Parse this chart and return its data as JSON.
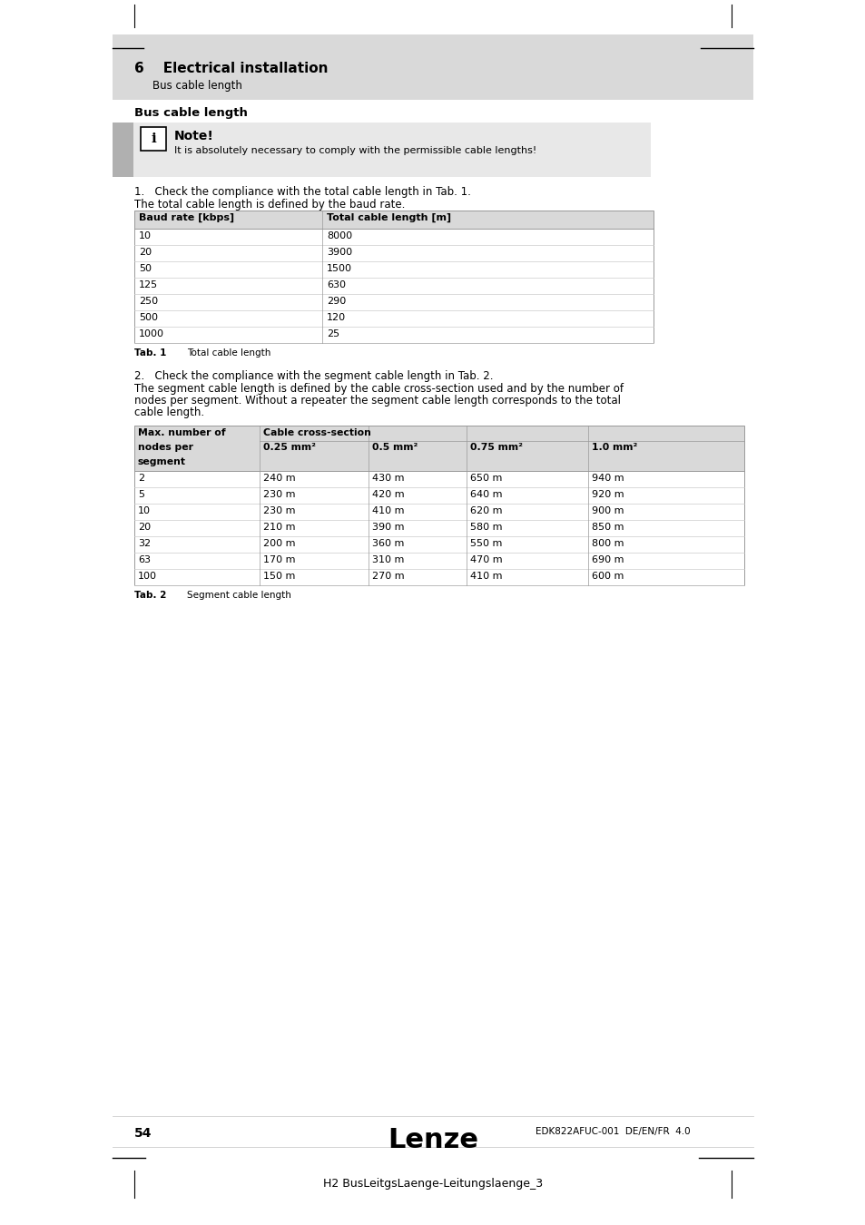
{
  "page_bg": "#ffffff",
  "header_bg": "#d9d9d9",
  "header_text": "6    Electrical installation",
  "header_subtext": "     Bus cable length",
  "section_title": "Bus cable length",
  "note_bg": "#e8e8e8",
  "note_title": "Note!",
  "note_text": "It is absolutely necessary to comply with the permissible cable lengths!",
  "step1_text": "1.   Check the compliance with the total cable length in Tab. 1.",
  "step1_subtext": "The total cable length is defined by the baud rate.",
  "table1_header": [
    "Baud rate [kbps]",
    "Total cable length [m]"
  ],
  "table1_header_bg": "#d9d9d9",
  "table1_rows": [
    [
      "10",
      "8000"
    ],
    [
      "20",
      "3900"
    ],
    [
      "50",
      "1500"
    ],
    [
      "125",
      "630"
    ],
    [
      "250",
      "290"
    ],
    [
      "500",
      "120"
    ],
    [
      "1000",
      "25"
    ]
  ],
  "tab1_label": "Tab. 1",
  "tab1_caption": "Total cable length",
  "step2_text": "2.   Check the compliance with the segment cable length in Tab. 2.",
  "step2_subtext_lines": [
    "The segment cable length is defined by the cable cross-section used and by the number of",
    "nodes per segment. Without a repeater the segment cable length corresponds to the total",
    "cable length."
  ],
  "table2_header_bg": "#d9d9d9",
  "table2_rows": [
    [
      "2",
      "240 m",
      "430 m",
      "650 m",
      "940 m"
    ],
    [
      "5",
      "230 m",
      "420 m",
      "640 m",
      "920 m"
    ],
    [
      "10",
      "230 m",
      "410 m",
      "620 m",
      "900 m"
    ],
    [
      "20",
      "210 m",
      "390 m",
      "580 m",
      "850 m"
    ],
    [
      "32",
      "200 m",
      "360 m",
      "550 m",
      "800 m"
    ],
    [
      "63",
      "170 m",
      "310 m",
      "470 m",
      "690 m"
    ],
    [
      "100",
      "150 m",
      "270 m",
      "410 m",
      "600 m"
    ]
  ],
  "tab2_label": "Tab. 2",
  "tab2_caption": "Segment cable length",
  "footer_page": "54",
  "footer_brand": "Lenze",
  "footer_doc": "EDK822AFUC-001  DE/EN/FR  4.0",
  "footer_ref": "H2 BusLeitgsLaenge-Leitungslaenge_3"
}
